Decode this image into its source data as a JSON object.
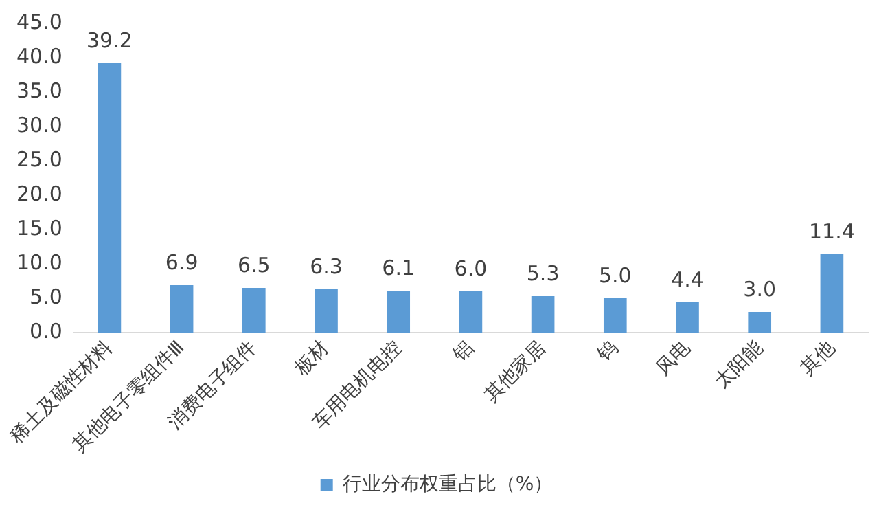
{
  "chart_data": {
    "type": "bar",
    "categories": [
      "稀土及磁性材料",
      "其他电子零组件Ⅲ",
      "消费电子组件",
      "板材",
      "车用电机电控",
      "铝",
      "其他家居",
      "钨",
      "风电",
      "太阳能",
      "其他"
    ],
    "series": [
      {
        "name": "行业分布权重占比（%）",
        "color": "#5b9bd5",
        "values": [
          39.2,
          6.9,
          6.5,
          6.3,
          6.1,
          6.0,
          5.3,
          5.0,
          4.4,
          3.0,
          11.4
        ],
        "value_labels": [
          "39.2",
          "6.9",
          "6.5",
          "6.3",
          "6.1",
          "6.0",
          "5.3",
          "5.0",
          "4.4",
          "3.0",
          "11.4"
        ]
      }
    ],
    "ylim": [
      0,
      45
    ],
    "yticks": [
      {
        "value": 0,
        "label": "0.0"
      },
      {
        "value": 5,
        "label": "5.0"
      },
      {
        "value": 10,
        "label": "10.0"
      },
      {
        "value": 15,
        "label": "15.0"
      },
      {
        "value": 20,
        "label": "20.0"
      },
      {
        "value": 25,
        "label": "25.0"
      },
      {
        "value": 30,
        "label": "30.0"
      },
      {
        "value": 35,
        "label": "35.0"
      },
      {
        "value": 40,
        "label": "40.0"
      },
      {
        "value": 45,
        "label": "45.0"
      }
    ],
    "grid": false,
    "legend": "bottom"
  }
}
